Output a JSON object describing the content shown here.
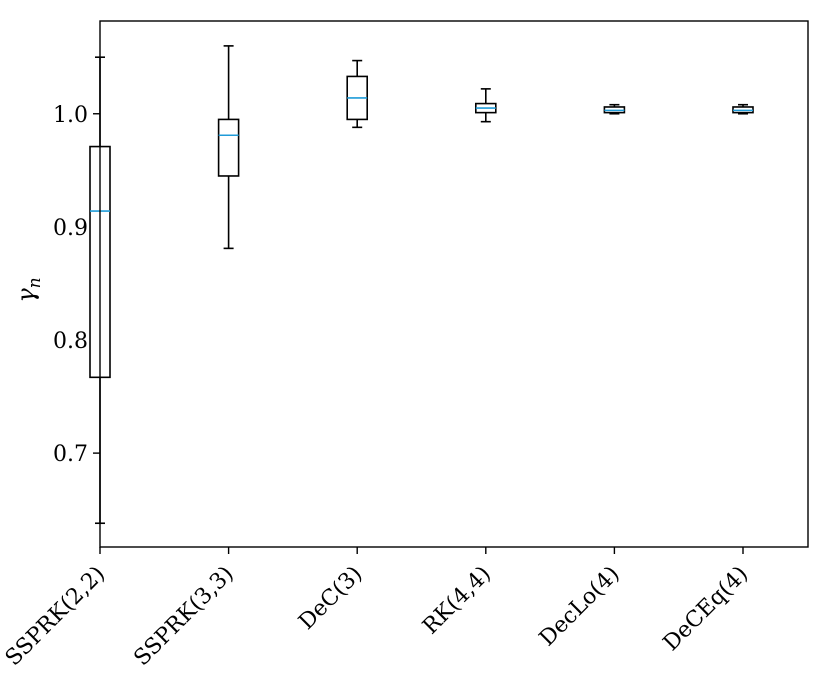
{
  "chart_data": {
    "type": "box",
    "title": "",
    "xlabel": "",
    "ylabel": "γ",
    "ylabel_subscript": "n",
    "ylim": [
      0.617,
      1.082
    ],
    "yticks": [
      0.7,
      0.8,
      0.9,
      1.0
    ],
    "ytick_labels": [
      "0.7",
      "0.8",
      "0.9",
      "1.0"
    ],
    "grid": false,
    "median_color": "#1f9bd8",
    "box_color": "#000000",
    "categories": [
      "SSPRK(2,2)",
      "SSPRK(3,3)",
      "DeC(3)",
      "RK(4,4)",
      "DecLo(4)",
      "DeCEq(4)"
    ],
    "boxes": [
      {
        "name": "SSPRK(2,2)",
        "whislo": 0.638,
        "q1": 0.767,
        "median": 0.914,
        "q3": 0.971,
        "whishi": 1.05
      },
      {
        "name": "SSPRK(3,3)",
        "whislo": 0.881,
        "q1": 0.945,
        "median": 0.981,
        "q3": 0.995,
        "whishi": 1.06
      },
      {
        "name": "DeC(3)",
        "whislo": 0.988,
        "q1": 0.995,
        "median": 1.014,
        "q3": 1.033,
        "whishi": 1.047
      },
      {
        "name": "RK(4,4)",
        "whislo": 0.993,
        "q1": 1.001,
        "median": 1.005,
        "q3": 1.009,
        "whishi": 1.022
      },
      {
        "name": "DecLo(4)",
        "whislo": 1.0,
        "q1": 1.001,
        "median": 1.003,
        "q3": 1.006,
        "whishi": 1.008
      },
      {
        "name": "DeCEq(4)",
        "whislo": 1.0,
        "q1": 1.001,
        "median": 1.003,
        "q3": 1.006,
        "whishi": 1.008
      }
    ]
  }
}
